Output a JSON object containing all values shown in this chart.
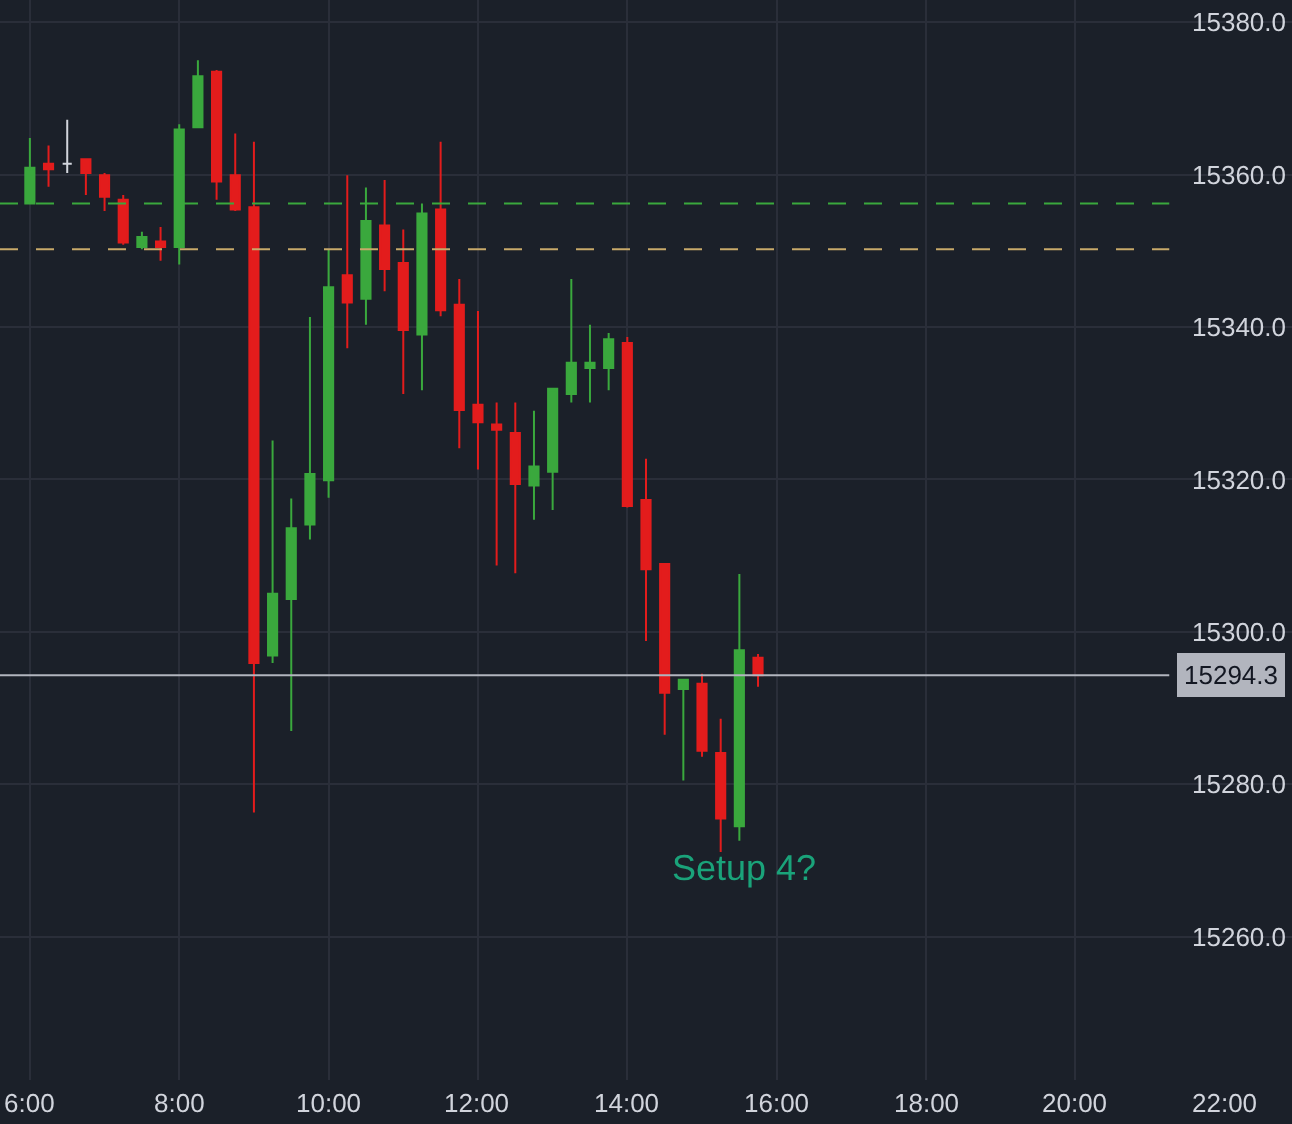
{
  "chart_data": {
    "type": "candlestick",
    "x": [
      6,
      6.25,
      6.5,
      6.75,
      7,
      7.25,
      7.5,
      7.75,
      8,
      8.25,
      8.5,
      8.75,
      9,
      9.25,
      9.5,
      9.75,
      10,
      10.25,
      10.5,
      10.75,
      11,
      11.25,
      11.5,
      11.75,
      12,
      12.25,
      12.5,
      12.75,
      13,
      13.25,
      13.5,
      13.75,
      14,
      14.25,
      14.5,
      14.75,
      15,
      15.25,
      15.5,
      15.75
    ],
    "ohlc": [
      [
        15356.2,
        15364.8,
        15356.2,
        15360.9
      ],
      [
        15361.4,
        15363.8,
        15358.4,
        15360.7
      ],
      [
        15361.4,
        15367.2,
        15360.2,
        15361.4
      ],
      [
        15362.0,
        15362.0,
        15357.3,
        15360.2
      ],
      [
        15359.9,
        15360.2,
        15355.2,
        15357.1
      ],
      [
        15356.7,
        15357.3,
        15350.8,
        15351.1
      ],
      [
        15350.5,
        15352.5,
        15350.2,
        15351.8
      ],
      [
        15351.2,
        15353.1,
        15348.7,
        15350.5
      ],
      [
        15350.5,
        15366.6,
        15348.2,
        15365.9
      ],
      [
        15366.2,
        15375.0,
        15366.2,
        15372.9
      ],
      [
        15373.5,
        15373.7,
        15356.7,
        15359.1
      ],
      [
        15359.9,
        15365.4,
        15355.2,
        15355.4
      ],
      [
        15355.7,
        15364.3,
        15276.3,
        15295.9
      ],
      [
        15296.9,
        15325.1,
        15295.9,
        15305.0
      ],
      [
        15304.3,
        15317.5,
        15287.0,
        15313.6
      ],
      [
        15314.1,
        15341.3,
        15312.1,
        15320.7
      ],
      [
        15319.9,
        15350.2,
        15317.6,
        15345.2
      ],
      [
        15346.8,
        15359.9,
        15337.2,
        15343.2
      ],
      [
        15343.7,
        15358.3,
        15340.3,
        15353.9
      ],
      [
        15353.3,
        15359.3,
        15344.7,
        15347.6
      ],
      [
        15348.4,
        15352.8,
        15331.2,
        15339.6
      ],
      [
        15339.0,
        15356.2,
        15331.7,
        15354.9
      ],
      [
        15355.4,
        15364.3,
        15341.4,
        15342.2
      ],
      [
        15342.9,
        15346.3,
        15324.1,
        15329.1
      ],
      [
        15329.8,
        15342.1,
        15321.3,
        15327.5
      ],
      [
        15327.2,
        15330.1,
        15308.7,
        15326.5
      ],
      [
        15326.1,
        15330.1,
        15307.7,
        15319.4
      ],
      [
        15319.2,
        15329.0,
        15314.7,
        15321.7
      ],
      [
        15321.0,
        15331.9,
        15316.0,
        15331.9
      ],
      [
        15331.2,
        15346.3,
        15330.1,
        15335.3
      ],
      [
        15334.6,
        15340.3,
        15330.1,
        15335.3
      ],
      [
        15334.6,
        15339.2,
        15331.7,
        15338.4
      ],
      [
        15337.9,
        15338.7,
        15316.3,
        15316.5
      ],
      [
        15317.3,
        15322.7,
        15298.8,
        15308.2
      ],
      [
        15308.9,
        15308.9,
        15286.5,
        15292.0
      ],
      [
        15292.5,
        15293.7,
        15280.5,
        15293.7
      ],
      [
        15293.2,
        15294.5,
        15283.6,
        15284.4
      ],
      [
        15284.1,
        15288.6,
        15271.1,
        15275.5
      ],
      [
        15274.5,
        15307.6,
        15272.6,
        15297.6
      ],
      [
        15296.6,
        15297.1,
        15292.8,
        15294.3
      ]
    ],
    "colors": [
      "#3aa83d",
      "#e31c1c",
      "#d1d4dc",
      "#e31c1c",
      "#e31c1c",
      "#e31c1c",
      "#3aa83d",
      "#e31c1c",
      "#3aa83d",
      "#3aa83d",
      "#e31c1c",
      "#e31c1c",
      "#e31c1c",
      "#3aa83d",
      "#3aa83d",
      "#3aa83d",
      "#3aa83d",
      "#e31c1c",
      "#3aa83d",
      "#e31c1c",
      "#e31c1c",
      "#3aa83d",
      "#e31c1c",
      "#e31c1c",
      "#e31c1c",
      "#e31c1c",
      "#e31c1c",
      "#3aa83d",
      "#3aa83d",
      "#3aa83d",
      "#3aa83d",
      "#3aa83d",
      "#e31c1c",
      "#e31c1c",
      "#e31c1c",
      "#3aa83d",
      "#e31c1c",
      "#e31c1c",
      "#3aa83d",
      "#e31c1c"
    ],
    "xlim": [
      5.6,
      22.9
    ],
    "xticks": [
      {
        "value": 6,
        "label": "6:00"
      },
      {
        "value": 8,
        "label": "8:00"
      },
      {
        "value": 10,
        "label": "10:00"
      },
      {
        "value": 12,
        "label": "12:00"
      },
      {
        "value": 14,
        "label": "14:00"
      },
      {
        "value": 16,
        "label": "16:00"
      },
      {
        "value": 18,
        "label": "18:00"
      },
      {
        "value": 20,
        "label": "20:00"
      },
      {
        "value": 22,
        "label": "22:00"
      }
    ],
    "ylim": [
      15241.2,
      15382.9
    ],
    "yticks": [
      {
        "value": 15260,
        "label": "15260.0"
      },
      {
        "value": 15280,
        "label": "15280.0"
      },
      {
        "value": 15300,
        "label": "15300.0"
      },
      {
        "value": 15320,
        "label": "15320.0"
      },
      {
        "value": 15340,
        "label": "15340.0"
      },
      {
        "value": 15360,
        "label": "15360.0"
      },
      {
        "value": 15380,
        "label": "15380.0"
      }
    ],
    "grid": true,
    "ref_lines": [
      {
        "axis": "y",
        "value": 15356.2,
        "color": "#3aa83d",
        "line_style": "dashed"
      },
      {
        "axis": "y",
        "value": 15350.2,
        "color": "#c8a96a",
        "line_style": "dashed"
      },
      {
        "axis": "y",
        "value": 15294.3,
        "label": "15294.3",
        "color": "#b2b5be",
        "line_style": "solid"
      }
    ],
    "annotations": [
      "Setup 4?"
    ]
  }
}
